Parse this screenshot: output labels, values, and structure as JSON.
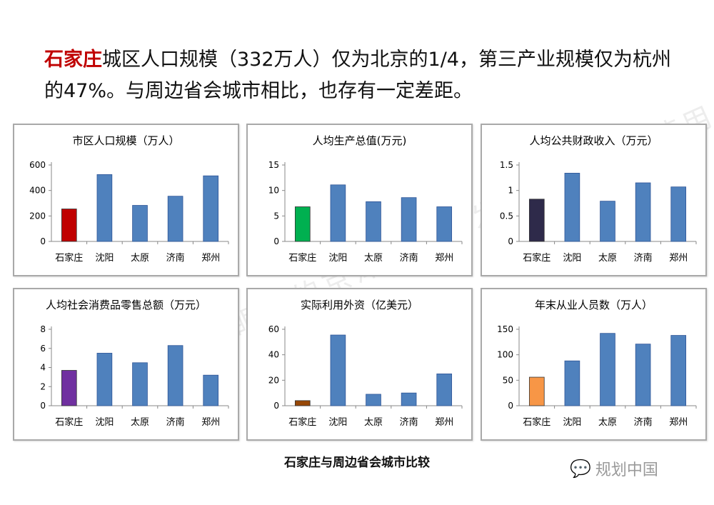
{
  "headline": {
    "highlight": "石家庄",
    "text": "城区人口规模（332万人）仅为北京的1/4，第三产业规模仅为杭州的47%。与周边省会城市相比，也存有一定差距。"
  },
  "caption": "石家庄与周边省会城市比较",
  "watermark": "仅供青年规划师眼中的京津冀协同发展学术活动使用",
  "logo": {
    "text": "规划中国",
    "icon": "wechat-icon"
  },
  "colors": {
    "highlight": "#c00000",
    "bar_default": "#4f81bd",
    "bar_stroke": "#2f5597"
  },
  "chart_data": [
    {
      "type": "bar",
      "title": "市区人口规模（万人）",
      "categories": [
        "石家庄",
        "沈阳",
        "太原",
        "济南",
        "郑州"
      ],
      "values": [
        255,
        525,
        283,
        355,
        515
      ],
      "ylim": [
        0,
        600
      ],
      "yticks": [
        0,
        200,
        400,
        600
      ],
      "first_color": "#c00000",
      "grid": false
    },
    {
      "type": "bar",
      "title": "人均生产总值(万元)",
      "categories": [
        "石家庄",
        "沈阳",
        "太原",
        "济南",
        "郑州"
      ],
      "values": [
        6.8,
        11.1,
        7.8,
        8.6,
        6.8
      ],
      "ylim": [
        0,
        15
      ],
      "yticks": [
        0,
        5,
        10,
        15
      ],
      "first_color": "#00b050",
      "grid": false
    },
    {
      "type": "bar",
      "title": "人均公共财政收入（万元）",
      "categories": [
        "石家庄",
        "沈阳",
        "太原",
        "济南",
        "郑州"
      ],
      "values": [
        0.83,
        1.34,
        0.79,
        1.15,
        1.07
      ],
      "ylim": [
        0,
        1.5
      ],
      "yticks": [
        0,
        0.5,
        1,
        1.5
      ],
      "first_color": "#2e2a4a",
      "grid": false
    },
    {
      "type": "bar",
      "title": "人均社会消费品零售总额（万元）",
      "categories": [
        "石家庄",
        "沈阳",
        "太原",
        "济南",
        "郑州"
      ],
      "values": [
        3.7,
        5.5,
        4.5,
        6.3,
        3.2
      ],
      "ylim": [
        0,
        8
      ],
      "yticks": [
        0,
        2,
        4,
        6,
        8
      ],
      "first_color": "#7030a0",
      "grid": false
    },
    {
      "type": "bar",
      "title": "实际利用外资（亿美元）",
      "categories": [
        "石家庄",
        "沈阳",
        "太原",
        "济南",
        "郑州"
      ],
      "values": [
        4,
        55.5,
        9,
        10,
        25
      ],
      "ylim": [
        0,
        60
      ],
      "yticks": [
        0,
        20,
        40,
        60
      ],
      "first_color": "#974706",
      "grid": false
    },
    {
      "type": "bar",
      "title": "年末从业人员数（万人）",
      "categories": [
        "石家庄",
        "沈阳",
        "太原",
        "济南",
        "郑州"
      ],
      "values": [
        56,
        88,
        142,
        121,
        138
      ],
      "ylim": [
        0,
        150
      ],
      "yticks": [
        0,
        50,
        100,
        150
      ],
      "first_color": "#f79646",
      "grid": false
    }
  ]
}
